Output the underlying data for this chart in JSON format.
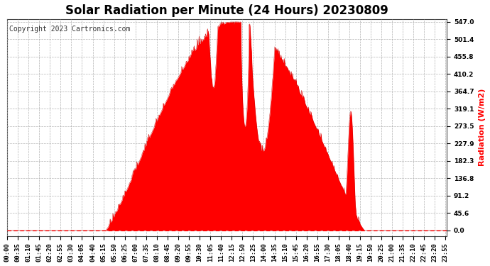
{
  "title": "Solar Radiation per Minute (24 Hours) 20230809",
  "ylabel": "Radiation (W/m2)",
  "copyright_text": "Copyright 2023 Cartronics.com",
  "fill_color": "#ff0000",
  "line_color": "#cc0000",
  "bg_color": "#ffffff",
  "grid_color": "#aaaaaa",
  "dashed_line_color": "#ff0000",
  "yticks": [
    0.0,
    45.6,
    91.2,
    136.8,
    182.3,
    227.9,
    273.5,
    319.1,
    364.7,
    410.2,
    455.8,
    501.4,
    547.0
  ],
  "ymax": 547.0,
  "ymin": 0.0,
  "title_fontsize": 12,
  "label_fontsize": 8,
  "tick_fontsize": 6.5,
  "copyright_fontsize": 7,
  "tick_interval_minutes": 35
}
